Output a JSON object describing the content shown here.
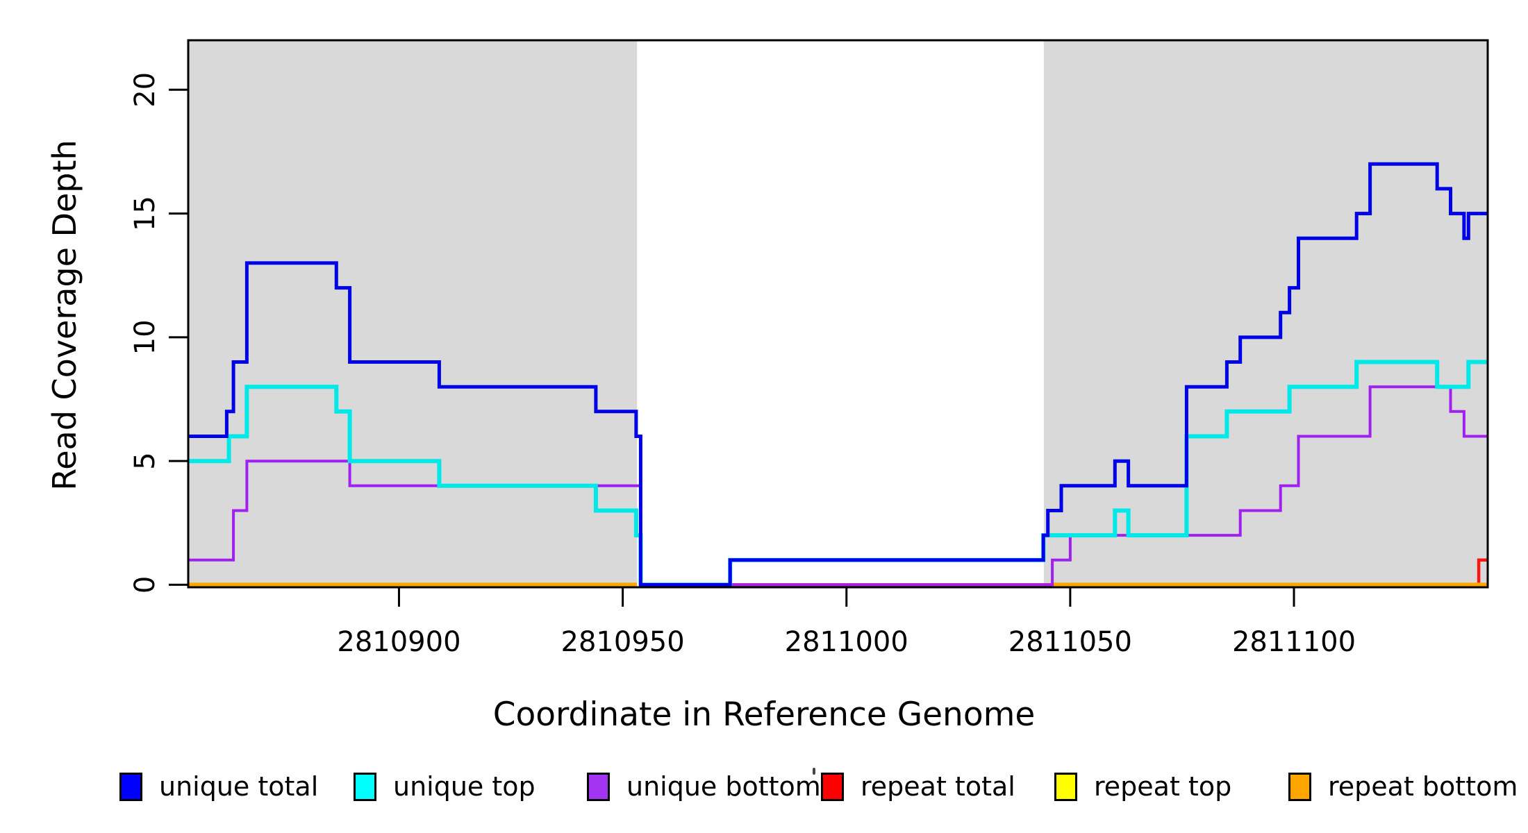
{
  "axes": {
    "x_label": "Coordinate in Reference Genome",
    "y_label": "Read Coverage Depth",
    "x_tick_labels": [
      "2810900",
      "2810950",
      "2811000",
      "2811050",
      "2811100"
    ],
    "y_tick_labels": [
      "0",
      "5",
      "10",
      "15",
      "20"
    ]
  },
  "legend": {
    "items": [
      {
        "label": "unique total",
        "color": "#0000FF"
      },
      {
        "label": "unique top",
        "color": "#00FFFF"
      },
      {
        "label": "unique bottom",
        "color": "#A335F2"
      },
      {
        "label": "repeat total",
        "color": "#FF0000"
      },
      {
        "label": "repeat top",
        "color": "#FFFF00"
      },
      {
        "label": "repeat bottom",
        "color": "#FFA500"
      }
    ]
  },
  "chart_data": {
    "type": "step",
    "title": "",
    "xlabel": "Coordinate in Reference Genome",
    "ylabel": "Read Coverage Depth",
    "x_domain": [
      2810852.9,
      2811143.3
    ],
    "y_domain": [
      -0.1,
      22.0
    ],
    "x_ticks": [
      2810900,
      2810950,
      2811000,
      2811050,
      2811100
    ],
    "y_ticks": [
      0,
      5,
      10,
      15,
      20
    ],
    "grid": false,
    "legend_position": "bottom",
    "shaded_region_color": "#d9d9d9",
    "shaded_regions": [
      {
        "x0": 2810852.9,
        "x1": 2810953.2
      },
      {
        "x0": 2811044.1,
        "x1": 2811143.3
      }
    ],
    "series": [
      {
        "name": "repeat top",
        "color": "#FFFF00",
        "width": 4,
        "segments": [
          [
            [
              2810852.9,
              0
            ],
            [
              2810953.2,
              0
            ]
          ],
          [
            [
              2811046,
              0
            ],
            [
              2811143.3,
              0
            ]
          ]
        ]
      },
      {
        "name": "repeat total",
        "color": "#FF1414",
        "width": 4.5,
        "segments": [
          [
            [
              2810973,
              0
            ],
            [
              2811141.3,
              1
            ],
            [
              2811143.3,
              1
            ]
          ]
        ]
      },
      {
        "name": "repeat bottom",
        "color": "#FFA500",
        "width": 6,
        "segments": [
          [
            [
              2810852.9,
              0
            ],
            [
              2810953.2,
              0
            ]
          ],
          [
            [
              2811046,
              0
            ],
            [
              2811143.3,
              0
            ]
          ]
        ]
      },
      {
        "name": "unique bottom",
        "color": "#A020F0",
        "width": 4,
        "segments": [
          [
            [
              2810852.9,
              1
            ],
            [
              2810863,
              3
            ],
            [
              2810866,
              5
            ],
            [
              2810889,
              4
            ],
            [
              2810954,
              0
            ],
            [
              2811046,
              1
            ],
            [
              2811050,
              2
            ],
            [
              2811088,
              3
            ],
            [
              2811097,
              4
            ],
            [
              2811101,
              6
            ],
            [
              2811117,
              8
            ],
            [
              2811135,
              7
            ],
            [
              2811138,
              6
            ],
            [
              2811143.3,
              6
            ]
          ]
        ]
      },
      {
        "name": "unique top",
        "color": "#00E8E8",
        "width": 6,
        "segments": [
          [
            [
              2810852.9,
              5
            ],
            [
              2810862,
              6
            ],
            [
              2810866,
              8
            ],
            [
              2810886,
              7
            ],
            [
              2810889,
              5
            ],
            [
              2810909,
              4
            ],
            [
              2810944,
              3
            ],
            [
              2810953,
              2
            ],
            [
              2810954,
              0
            ],
            [
              2810974,
              1
            ],
            [
              2811044,
              2
            ],
            [
              2811060,
              3
            ],
            [
              2811063,
              2
            ],
            [
              2811076,
              6
            ],
            [
              2811085,
              7
            ],
            [
              2811099,
              8
            ],
            [
              2811114,
              9
            ],
            [
              2811132,
              8
            ],
            [
              2811139,
              9
            ],
            [
              2811143.3,
              9
            ]
          ]
        ]
      },
      {
        "name": "unique total",
        "color": "#0000E8",
        "width": 5,
        "segments": [
          [
            [
              2810852.9,
              6
            ],
            [
              2810861.5,
              7
            ],
            [
              2810863,
              9
            ],
            [
              2810866,
              13
            ],
            [
              2810886,
              12
            ],
            [
              2810889,
              9
            ],
            [
              2810909,
              8
            ],
            [
              2810944,
              7
            ],
            [
              2810953,
              6
            ],
            [
              2810954,
              0
            ],
            [
              2810974,
              1
            ],
            [
              2811044,
              2
            ],
            [
              2811045,
              3
            ],
            [
              2811048,
              4
            ],
            [
              2811060,
              5
            ],
            [
              2811063,
              4
            ],
            [
              2811076,
              8
            ],
            [
              2811085,
              9
            ],
            [
              2811088,
              10
            ],
            [
              2811097,
              11
            ],
            [
              2811099,
              12
            ],
            [
              2811101,
              14
            ],
            [
              2811114,
              15
            ],
            [
              2811117,
              17
            ],
            [
              2811132,
              16
            ],
            [
              2811135,
              15
            ],
            [
              2811138,
              14
            ],
            [
              2811139,
              15
            ],
            [
              2811143.3,
              15
            ]
          ]
        ]
      }
    ]
  }
}
